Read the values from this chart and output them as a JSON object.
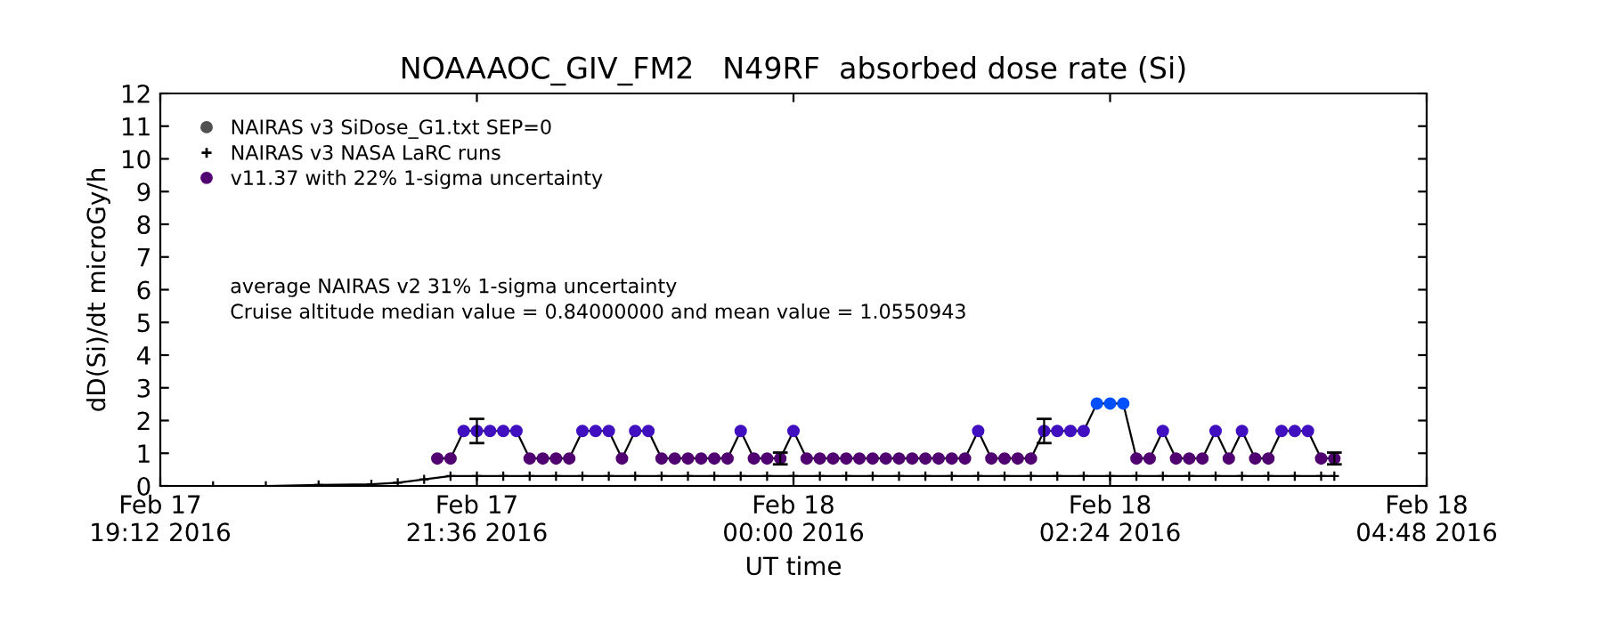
{
  "chart_data": {
    "type": "line",
    "title": "NOAAAOC_GIV_FM2   N49RF  absorbed dose rate (Si)",
    "xlabel": "UT time",
    "ylabel": "dD(Si)/dt microGy/h",
    "xlim": [
      "2016-02-17T19:12",
      "2016-02-18T04:48"
    ],
    "ylim": [
      0,
      12
    ],
    "xticks": [
      {
        "value": "2016-02-17T19:12",
        "label": "Feb 17\n19:12 2016"
      },
      {
        "value": "2016-02-17T21:36",
        "label": "Feb 17\n21:36 2016"
      },
      {
        "value": "2016-02-18T00:00",
        "label": "Feb 18\n00:00 2016"
      },
      {
        "value": "2016-02-18T02:24",
        "label": "Feb 18\n02:24 2016"
      },
      {
        "value": "2016-02-18T04:48",
        "label": "Feb 18\n04:48 2016"
      }
    ],
    "yticks": [
      0,
      1,
      2,
      3,
      4,
      5,
      6,
      7,
      8,
      9,
      10,
      11,
      12
    ],
    "grid": false,
    "legend": "top left",
    "annotations": [
      "average NAIRAS v2 31% 1-sigma uncertainty",
      "Cruise altitude median value = 0.84000000 and mean value = 1.0550943"
    ],
    "series": [
      {
        "name": "NAIRAS v3 SiDose_G1.txt SEP=0",
        "type": "scatter",
        "marker": "circle",
        "color": "#505050"
      },
      {
        "name": "NAIRAS v3 NASA LaRC runs",
        "marker": "cross",
        "color": "#000000",
        "x": [
          "2016-02-17T19:36",
          "2016-02-17T20:00",
          "2016-02-17T20:24",
          "2016-02-17T20:48",
          "2016-02-17T21:00",
          "2016-02-17T21:12",
          "2016-02-17T21:24",
          "2016-02-17T21:36",
          "2016-02-17T21:48",
          "2016-02-17T22:00",
          "2016-02-17T22:12",
          "2016-02-17T22:24",
          "2016-02-17T22:36",
          "2016-02-17T22:48",
          "2016-02-17T23:00",
          "2016-02-17T23:12",
          "2016-02-17T23:24",
          "2016-02-17T23:36",
          "2016-02-17T23:48",
          "2016-02-18T00:00",
          "2016-02-18T00:12",
          "2016-02-18T00:24",
          "2016-02-18T00:36",
          "2016-02-18T00:48",
          "2016-02-18T01:00",
          "2016-02-18T01:12",
          "2016-02-18T01:24",
          "2016-02-18T01:36",
          "2016-02-18T01:48",
          "2016-02-18T02:00",
          "2016-02-18T02:12",
          "2016-02-18T02:24",
          "2016-02-18T02:36",
          "2016-02-18T02:48",
          "2016-02-18T03:00",
          "2016-02-18T03:12",
          "2016-02-18T03:24",
          "2016-02-18T03:36",
          "2016-02-18T03:48",
          "2016-02-18T04:00",
          "2016-02-18T04:06"
        ],
        "values": [
          0,
          0,
          0.03,
          0.05,
          0.1,
          0.2,
          0.3,
          0.3,
          0.3,
          0.3,
          0.3,
          0.3,
          0.3,
          0.3,
          0.3,
          0.3,
          0.3,
          0.3,
          0.3,
          0.3,
          0.3,
          0.3,
          0.3,
          0.3,
          0.3,
          0.3,
          0.3,
          0.3,
          0.3,
          0.3,
          0.3,
          0.3,
          0.3,
          0.3,
          0.3,
          0.3,
          0.3,
          0.3,
          0.3,
          0.3,
          0.3
        ]
      },
      {
        "name": "v11.37 with 22% 1-sigma uncertainty",
        "marker": "circle",
        "color": "#000000",
        "x": [
          "2016-02-17T21:18",
          "2016-02-17T21:24",
          "2016-02-17T21:30",
          "2016-02-17T21:36",
          "2016-02-17T21:42",
          "2016-02-17T21:48",
          "2016-02-17T21:54",
          "2016-02-17T22:00",
          "2016-02-17T22:06",
          "2016-02-17T22:12",
          "2016-02-17T22:18",
          "2016-02-17T22:24",
          "2016-02-17T22:30",
          "2016-02-17T22:36",
          "2016-02-17T22:42",
          "2016-02-17T22:48",
          "2016-02-17T22:54",
          "2016-02-17T23:00",
          "2016-02-17T23:06",
          "2016-02-17T23:12",
          "2016-02-17T23:18",
          "2016-02-17T23:24",
          "2016-02-17T23:30",
          "2016-02-17T23:36",
          "2016-02-17T23:42",
          "2016-02-17T23:48",
          "2016-02-17T23:54",
          "2016-02-18T00:00",
          "2016-02-18T00:06",
          "2016-02-18T00:12",
          "2016-02-18T00:18",
          "2016-02-18T00:24",
          "2016-02-18T00:30",
          "2016-02-18T00:36",
          "2016-02-18T00:42",
          "2016-02-18T00:48",
          "2016-02-18T00:54",
          "2016-02-18T01:00",
          "2016-02-18T01:06",
          "2016-02-18T01:12",
          "2016-02-18T01:18",
          "2016-02-18T01:24",
          "2016-02-18T01:30",
          "2016-02-18T01:36",
          "2016-02-18T01:42",
          "2016-02-18T01:48",
          "2016-02-18T01:54",
          "2016-02-18T02:00",
          "2016-02-18T02:06",
          "2016-02-18T02:12",
          "2016-02-18T02:18",
          "2016-02-18T02:24",
          "2016-02-18T02:30",
          "2016-02-18T02:36",
          "2016-02-18T02:42",
          "2016-02-18T02:48",
          "2016-02-18T02:54",
          "2016-02-18T03:00",
          "2016-02-18T03:06",
          "2016-02-18T03:12",
          "2016-02-18T03:18",
          "2016-02-18T03:24",
          "2016-02-18T03:30",
          "2016-02-18T03:36",
          "2016-02-18T03:42",
          "2016-02-18T03:48",
          "2016-02-18T03:54",
          "2016-02-18T04:00",
          "2016-02-18T04:06"
        ],
        "values": [
          0.84,
          0.84,
          1.68,
          1.68,
          1.68,
          1.68,
          1.68,
          0.84,
          0.84,
          0.84,
          0.84,
          1.68,
          1.68,
          1.68,
          0.84,
          1.68,
          1.68,
          0.84,
          0.84,
          0.84,
          0.84,
          0.84,
          0.84,
          1.68,
          0.84,
          0.84,
          0.84,
          1.68,
          0.84,
          0.84,
          0.84,
          0.84,
          0.84,
          0.84,
          0.84,
          0.84,
          0.84,
          0.84,
          0.84,
          0.84,
          0.84,
          1.68,
          0.84,
          0.84,
          0.84,
          0.84,
          1.68,
          1.68,
          1.68,
          1.68,
          2.52,
          2.52,
          2.52,
          0.84,
          0.84,
          1.68,
          0.84,
          0.84,
          0.84,
          1.68,
          0.84,
          1.68,
          0.84,
          0.84,
          1.68,
          1.68,
          1.68,
          0.84,
          0.84
        ],
        "colors": [
          "#500070",
          "#500070",
          "#4010c0",
          "#4010c0",
          "#4010c0",
          "#4010c0",
          "#4010c0",
          "#500070",
          "#500070",
          "#500070",
          "#500070",
          "#4010c0",
          "#4010c0",
          "#4010c0",
          "#500070",
          "#4010c0",
          "#4010c0",
          "#500070",
          "#500070",
          "#500070",
          "#500070",
          "#500070",
          "#500070",
          "#4010c0",
          "#500070",
          "#500070",
          "#500070",
          "#4010c0",
          "#500070",
          "#500070",
          "#500070",
          "#500070",
          "#500070",
          "#500070",
          "#500070",
          "#500070",
          "#500070",
          "#500070",
          "#500070",
          "#500070",
          "#500070",
          "#4010c0",
          "#500070",
          "#500070",
          "#500070",
          "#500070",
          "#4010c0",
          "#4010c0",
          "#4010c0",
          "#4010c0",
          "#0050ff",
          "#0050ff",
          "#0050ff",
          "#500070",
          "#500070",
          "#4010c0",
          "#500070",
          "#500070",
          "#500070",
          "#4010c0",
          "#500070",
          "#4010c0",
          "#500070",
          "#500070",
          "#4010c0",
          "#4010c0",
          "#4010c0",
          "#500070",
          "#500070"
        ],
        "errors": [
          null,
          null,
          null,
          0.37,
          null,
          null,
          null,
          null,
          null,
          null,
          null,
          null,
          null,
          null,
          null,
          null,
          null,
          null,
          null,
          null,
          null,
          null,
          null,
          null,
          null,
          null,
          0.18,
          null,
          null,
          null,
          null,
          null,
          null,
          null,
          null,
          null,
          null,
          null,
          null,
          null,
          null,
          null,
          null,
          null,
          null,
          null,
          0.37,
          null,
          null,
          null,
          null,
          null,
          null,
          null,
          null,
          null,
          null,
          null,
          null,
          null,
          null,
          null,
          null,
          null,
          null,
          null,
          null,
          null,
          0.18
        ]
      }
    ]
  }
}
